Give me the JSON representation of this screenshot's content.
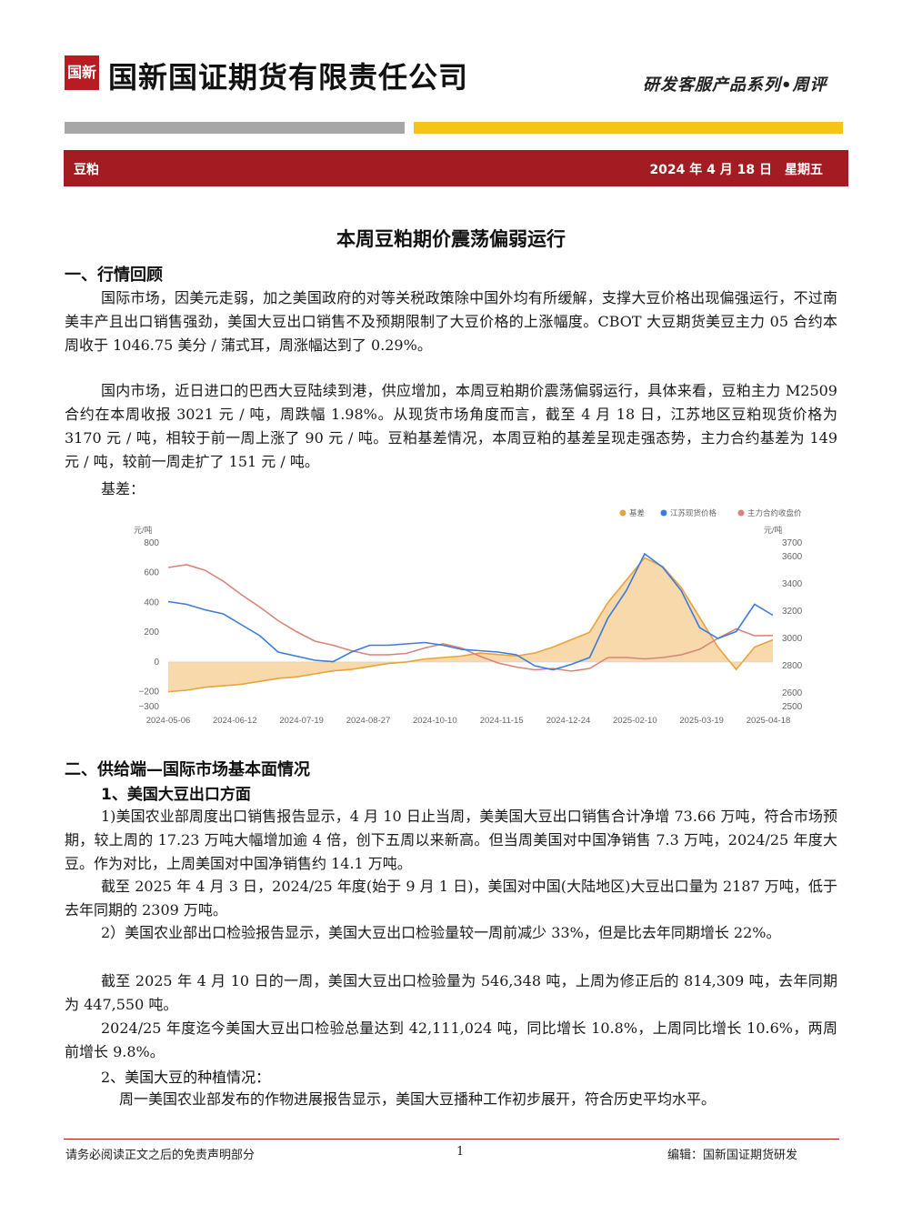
{
  "header": {
    "logo_mark": "国新",
    "company": "国新国证期货有限责任公司",
    "series": "研发客服产品系列•周评",
    "category": "豆粕",
    "date": "2024 年 4 月 18 日　星期五"
  },
  "title": "本周豆粕期价震荡偏弱运行",
  "section1": {
    "heading": "一、行情回顾",
    "p1": "国际市场，因美元走弱，加之美国政府的对等关税政策除中国外均有所缓解，支撑大豆价格出现偏强运行，不过南美丰产且出口销售强劲，美国大豆出口销售不及预期限制了大豆价格的上涨幅度。CBOT 大豆期货美豆主力 05 合约本周收于 1046.75 美分 / 蒲式耳，周涨幅达到了 0.29%。",
    "p2": "国内市场，近日进口的巴西大豆陆续到港，供应增加，本周豆粕期价震荡偏弱运行，具体来看，豆粕主力 M2509 合约在本周收报 3021 元 / 吨，周跌幅 1.98%。从现货市场角度而言，截至 4 月 18 日，江苏地区豆粕现货价格为 3170 元 / 吨，相较于前一周上涨了 90 元 / 吨。豆粕基差情况，本周豆粕的基差呈现走强态势，主力合约基差为 149 元 / 吨，较前一周走扩了 151 元 / 吨。",
    "basis_label": "基差："
  },
  "chart_data": {
    "type": "line",
    "legend": [
      "基差",
      "江苏现货价格",
      "主力合约收盘价"
    ],
    "legend_position": "top-right",
    "left_unit": "元/吨",
    "right_unit": "元/吨",
    "left_ticks": [
      "800",
      "600",
      "400",
      "200",
      "0",
      "−200",
      "−300"
    ],
    "right_ticks": [
      "3700",
      "3600",
      "3400",
      "3200",
      "3000",
      "2800",
      "2600",
      "2500"
    ],
    "x_ticks": [
      "2024-05-06",
      "2024-06-12",
      "2024-07-19",
      "2024-08-27",
      "2024-10-10",
      "2024-11-15",
      "2024-12-24",
      "2025-02-10",
      "2025-03-19",
      "2025-04-18"
    ],
    "colors": {
      "basis": "#e8a33c",
      "basis_fill": "#f7d9ac",
      "spot": "#3d7bd9",
      "futures": "#d9847a"
    },
    "ylim_left": [
      -300,
      800
    ],
    "ylim_right": [
      2500,
      3700
    ],
    "basis": [
      -200,
      -190,
      -170,
      -160,
      -150,
      -130,
      -110,
      -100,
      -80,
      -60,
      -50,
      -30,
      -10,
      0,
      20,
      30,
      40,
      60,
      50,
      40,
      60,
      100,
      150,
      200,
      400,
      550,
      700,
      640,
      500,
      300,
      100,
      -50,
      100,
      149
    ],
    "spot": [
      3270,
      3250,
      3210,
      3180,
      3100,
      3020,
      2900,
      2870,
      2840,
      2830,
      2900,
      2950,
      2950,
      2960,
      2970,
      2950,
      2920,
      2910,
      2900,
      2880,
      2800,
      2770,
      2810,
      2860,
      3150,
      3350,
      3620,
      3520,
      3350,
      3080,
      3000,
      3050,
      3250,
      3170
    ],
    "futures": [
      3520,
      3540,
      3500,
      3420,
      3320,
      3230,
      3130,
      3050,
      2980,
      2950,
      2910,
      2880,
      2880,
      2890,
      2930,
      2960,
      2930,
      2870,
      2820,
      2790,
      2770,
      2780,
      2760,
      2780,
      2860,
      2860,
      2850,
      2860,
      2880,
      2920,
      3000,
      3070,
      3020,
      3021
    ]
  },
  "section2": {
    "heading": "二、供给端—国际市场基本面情况",
    "sub1": "1、美国大豆出口方面",
    "p1": "1)美国农业部周度出口销售报告显示，4 月 10 日止当周，美美国大豆出口销售合计净增 73.66 万吨，符合市场预期，较上周的 17.23 万吨大幅增加逾 4 倍，创下五周以来新高。但当周美国对中国净销售 7.3 万吨，2024/25 年度大豆。作为对比，上周美国对中国净销售约 14.1 万吨。",
    "p2": "截至 2025 年 4 月 3 日，2024/25 年度(始于 9 月 1 日)，美国对中国(大陆地区)大豆出口量为 2187 万吨，低于去年同期的 2309 万吨。",
    "p3": "2）美国农业部出口检验报告显示，美国大豆出口检验量较一周前减少 33%，但是比去年同期增长 22%。",
    "p4": "截至 2025 年 4 月 10 日的一周，美国大豆出口检验量为 546,348 吨，上周为修正后的 814,309 吨，去年同期为 447,550 吨。",
    "p5": "2024/25 年度迄今美国大豆出口检验总量达到 42,111,024 吨，同比增长 10.8%，上周同比增长 10.6%，两周前增长 9.8%。",
    "sub2": "2、美国大豆的种植情况：",
    "p6": "周一美国农业部发布的作物进展报告显示，美国大豆播种工作初步展开，符合历史平均水平。"
  },
  "footer": {
    "left": "请务必阅读正文之后的免责声明部分",
    "page": "1",
    "right": "编辑：国新国证期货研发"
  }
}
